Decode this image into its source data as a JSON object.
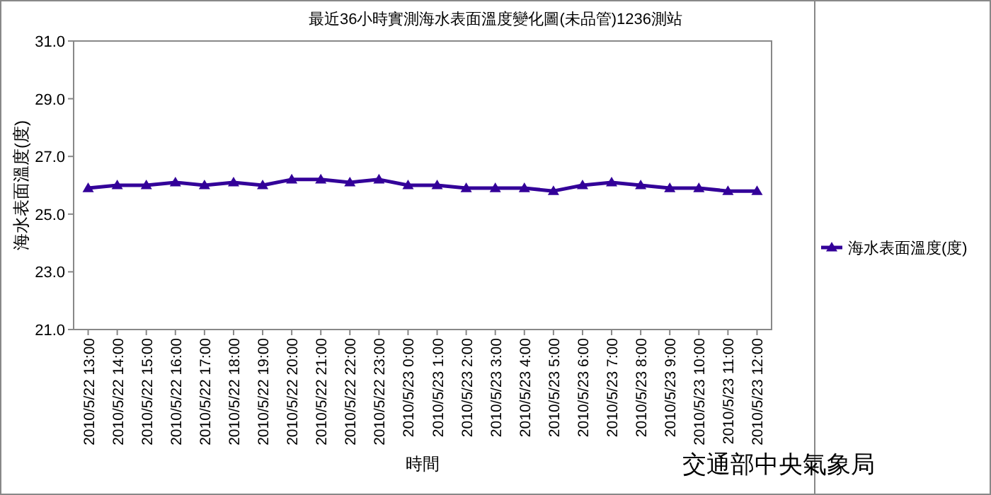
{
  "chart_data": {
    "type": "line",
    "title": "最近36小時實測海水表面溫度變化圖(未品管)1236測站",
    "xlabel": "時間",
    "ylabel": "海水表面溫度(度)",
    "categories": [
      "2010/5/22 13:00",
      "2010/5/22 14:00",
      "2010/5/22 15:00",
      "2010/5/22 16:00",
      "2010/5/22 17:00",
      "2010/5/22 18:00",
      "2010/5/22 19:00",
      "2010/5/22 20:00",
      "2010/5/22 21:00",
      "2010/5/22 22:00",
      "2010/5/22 23:00",
      "2010/5/23 0:00",
      "2010/5/23 1:00",
      "2010/5/23 2:00",
      "2010/5/23 3:00",
      "2010/5/23 4:00",
      "2010/5/23 5:00",
      "2010/5/23 6:00",
      "2010/5/23 7:00",
      "2010/5/23 8:00",
      "2010/5/23 9:00",
      "2010/5/23 10:00",
      "2010/5/23 11:00",
      "2010/5/23 12:00"
    ],
    "series": [
      {
        "name": "海水表面溫度(度)",
        "color": "#330099",
        "values": [
          25.9,
          26.0,
          26.0,
          26.1,
          26.0,
          26.1,
          26.0,
          26.2,
          26.2,
          26.1,
          26.2,
          26.0,
          26.0,
          25.9,
          25.9,
          25.9,
          25.8,
          26.0,
          26.1,
          26.0,
          25.9,
          25.9,
          25.8,
          25.8
        ]
      }
    ],
    "ylim": [
      21,
      31
    ],
    "yticks": [
      {
        "value": 21,
        "label": "21.0"
      },
      {
        "value": 23,
        "label": "23.0"
      },
      {
        "value": 25,
        "label": "25.0"
      },
      {
        "value": 27,
        "label": "27.0"
      },
      {
        "value": 29,
        "label": "29.0"
      },
      {
        "value": 31,
        "label": "31.0"
      }
    ],
    "marker": "triangle",
    "line_style": "solid",
    "grid": false,
    "legend": "right",
    "annotations": [
      "交通部中央氣象局"
    ]
  }
}
